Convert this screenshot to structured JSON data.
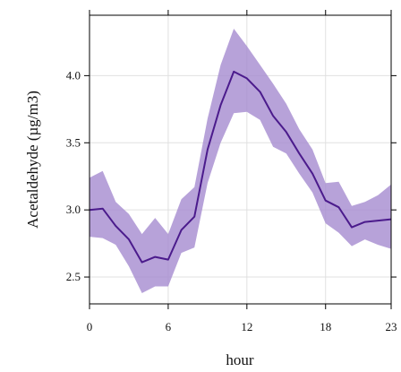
{
  "chart_data": {
    "type": "line",
    "xlabel": "hour",
    "ylabel": "Acetaldehyde (µg/m3)",
    "xlim": [
      0,
      23
    ],
    "ylim": [
      2.3,
      4.45
    ],
    "xticks": [
      0,
      6,
      12,
      18,
      23
    ],
    "yticks": [
      2.5,
      3.0,
      3.5,
      4.0
    ],
    "ytick_labels": [
      "2.5",
      "3.0",
      "3.5",
      "4.0"
    ],
    "grid": true,
    "colors": {
      "line": "#4b1b8c",
      "band": "#a58bd0",
      "grid": "#e0e0e0",
      "frame": "#000000"
    },
    "series": [
      {
        "x": [
          0,
          1,
          2,
          3,
          4,
          5,
          6,
          7,
          8,
          9,
          10,
          11,
          12,
          13,
          14,
          15,
          16,
          17,
          18,
          19,
          20,
          21,
          22,
          23
        ],
        "y": [
          3.0,
          3.01,
          2.88,
          2.78,
          2.61,
          2.65,
          2.63,
          2.85,
          2.95,
          3.45,
          3.78,
          4.03,
          3.98,
          3.88,
          3.7,
          3.58,
          3.42,
          3.27,
          3.07,
          3.02,
          2.87,
          2.91,
          2.92,
          2.93
        ],
        "lower": [
          2.8,
          2.79,
          2.74,
          2.58,
          2.38,
          2.43,
          2.43,
          2.68,
          2.72,
          3.2,
          3.5,
          3.72,
          3.73,
          3.67,
          3.47,
          3.42,
          3.27,
          3.13,
          2.9,
          2.83,
          2.73,
          2.78,
          2.74,
          2.71
        ],
        "upper": [
          3.24,
          3.29,
          3.06,
          2.97,
          2.82,
          2.94,
          2.82,
          3.08,
          3.17,
          3.68,
          4.08,
          4.35,
          4.22,
          4.08,
          3.94,
          3.79,
          3.6,
          3.45,
          3.2,
          3.21,
          3.03,
          3.06,
          3.11,
          3.19
        ]
      }
    ]
  }
}
